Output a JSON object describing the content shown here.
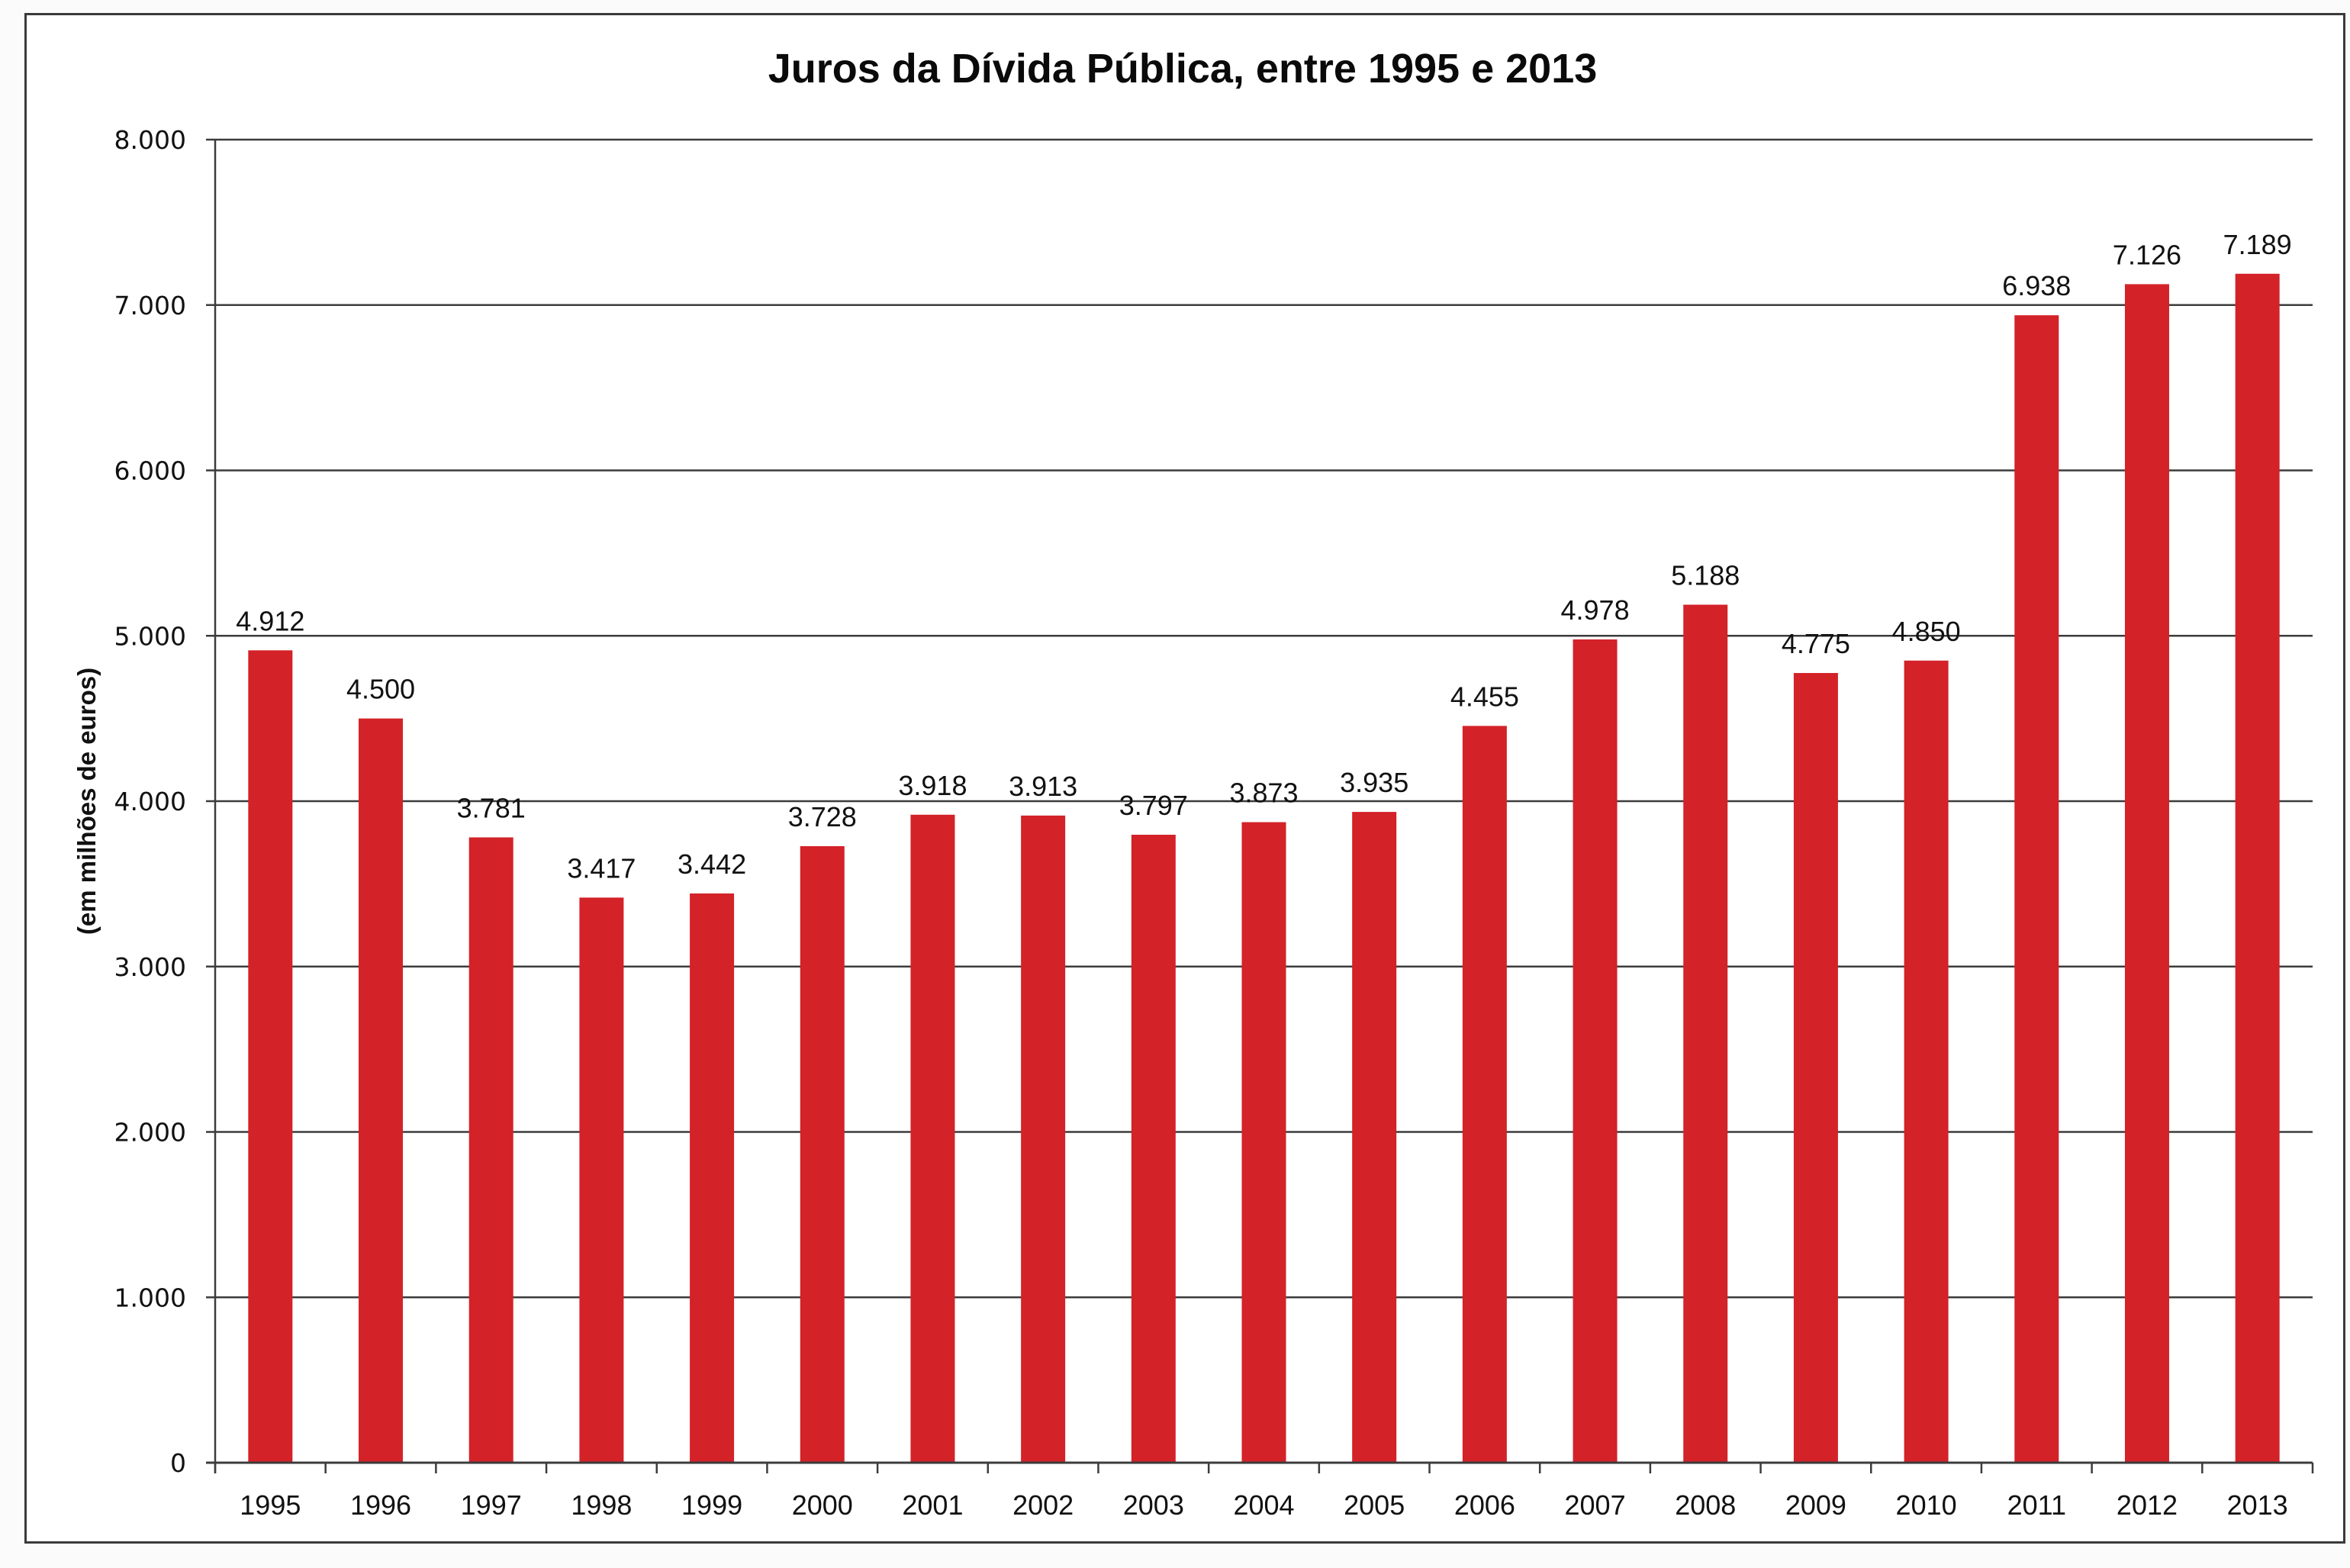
{
  "chart_data": {
    "type": "bar",
    "title": "Juros da Dívida Pública, entre 1995 e 2013",
    "xlabel": "",
    "ylabel": "(em milhões de euros)",
    "ylim": [
      0,
      8000
    ],
    "ytick_values": [
      0,
      1000,
      2000,
      3000,
      4000,
      5000,
      6000,
      7000,
      8000
    ],
    "ytick_labels": [
      "0",
      "1.000",
      "2.000",
      "3.000",
      "4.000",
      "5.000",
      "6.000",
      "7.000",
      "8.000"
    ],
    "grid": true,
    "legend": "none",
    "bar_color": "#d32228",
    "categories": [
      "1995",
      "1996",
      "1997",
      "1998",
      "1999",
      "2000",
      "2001",
      "2002",
      "2003",
      "2004",
      "2005",
      "2006",
      "2007",
      "2008",
      "2009",
      "2010",
      "2011",
      "2012",
      "2013"
    ],
    "values": [
      4912,
      4500,
      3781,
      3417,
      3442,
      3728,
      3918,
      3913,
      3797,
      3873,
      3935,
      4455,
      4978,
      5188,
      4775,
      4850,
      6938,
      7126,
      7189
    ],
    "data_labels": [
      "4.912",
      "4.500",
      "3.781",
      "3.417",
      "3.442",
      "3.728",
      "3.918",
      "3.913",
      "3.797",
      "3.873",
      "3.935",
      "4.455",
      "4.978",
      "5.188",
      "4.775",
      "4.850",
      "6.938",
      "7.126",
      "7.189"
    ]
  }
}
